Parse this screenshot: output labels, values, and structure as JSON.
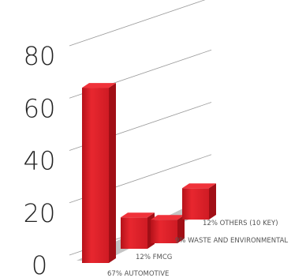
{
  "chart_data": {
    "type": "bar",
    "title": "",
    "xlabel": "",
    "ylabel": "",
    "ylim": [
      0,
      80
    ],
    "y_ticks": [
      0,
      20,
      40,
      60,
      80
    ],
    "grid": true,
    "legend": "none",
    "style": "3d",
    "bar_color": "#d8202a",
    "floor_color": "#c4c4c4",
    "categories": [
      "67% AUTOMOTIVE",
      "12% FMCG",
      "9% WASTE AND ENVIRONMENTAL",
      "12% OTHERS (10 KEY)"
    ],
    "values": [
      67,
      12,
      9,
      12
    ]
  }
}
